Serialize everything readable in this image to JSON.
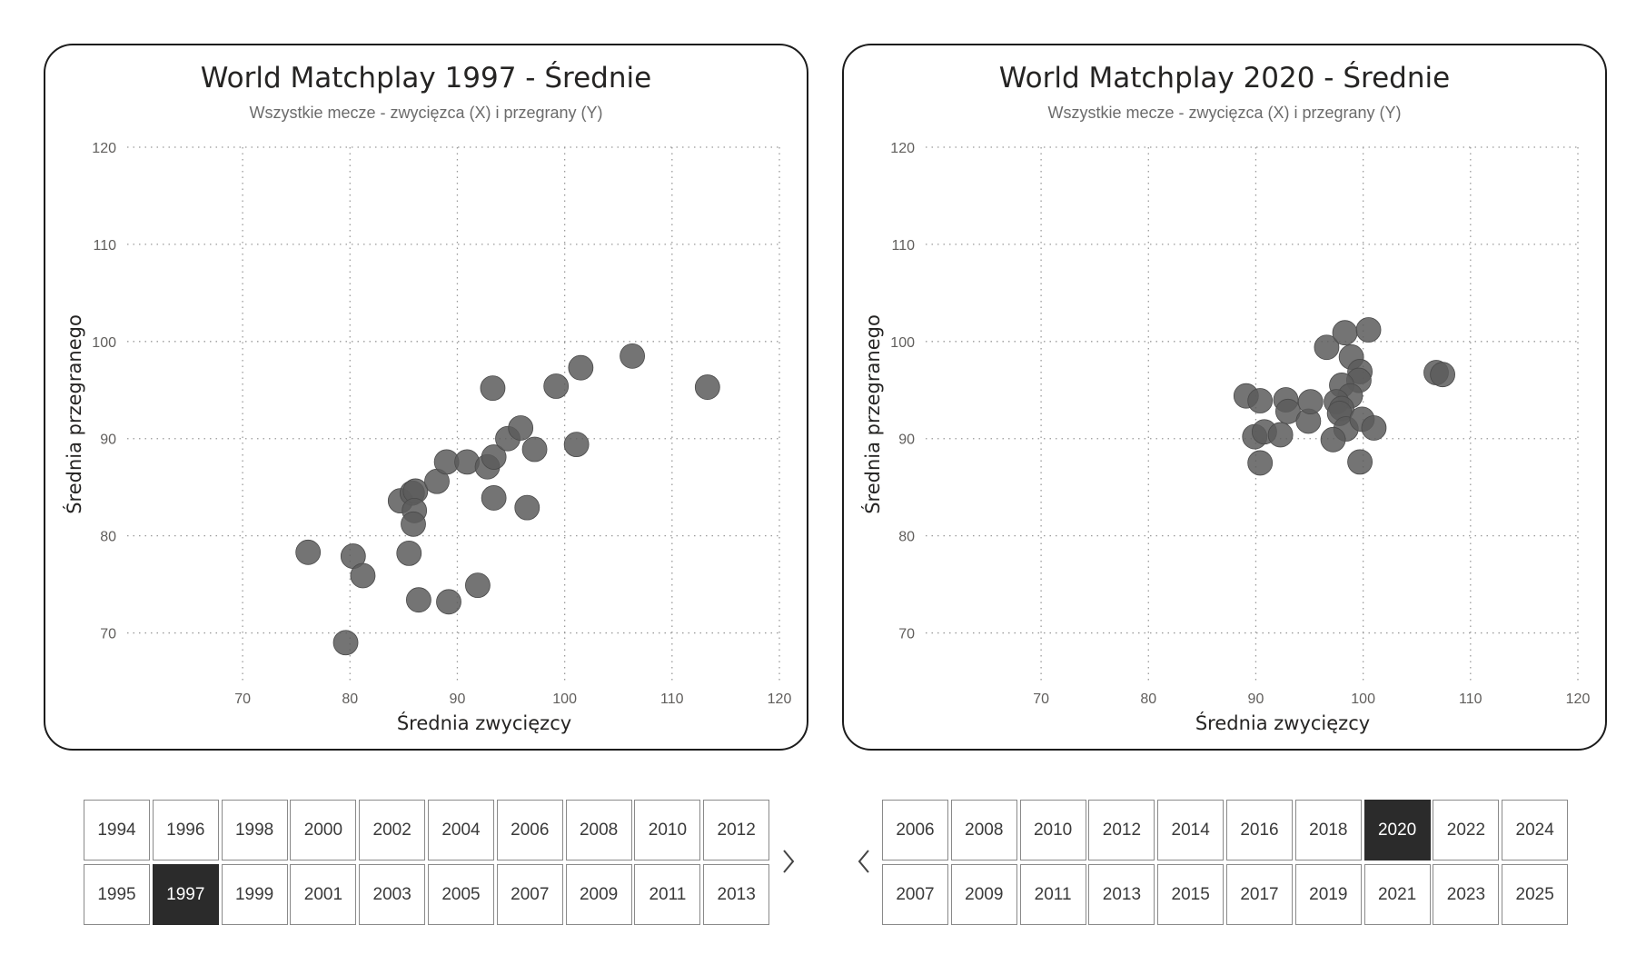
{
  "colors": {
    "point": "#5c5c5c",
    "selected": "#2b2b2b",
    "border": "#1c1c1c"
  },
  "charts": [
    {
      "title": "World Matchplay 1997 - Średnie",
      "subtitle": "Wszystkie mecze - zwycięzca (X) i przegrany (Y)",
      "xlabel": "Średnia zwycięzcy",
      "ylabel": "Średnia przegranego"
    },
    {
      "title": "World Matchplay 2020 - Średnie",
      "subtitle": "Wszystkie mecze - zwycięzca (X) i przegrany (Y)",
      "xlabel": "Średnia zwycięzcy",
      "ylabel": "Średnia przegranego"
    }
  ],
  "chart_data": [
    {
      "type": "scatter",
      "title": "World Matchplay 1997 - Średnie",
      "subtitle": "Wszystkie mecze - zwycięzca (X) i przegrany (Y)",
      "xlabel": "Średnia zwycięzcy",
      "ylabel": "Średnia przegranego",
      "xlim": [
        65,
        120
      ],
      "ylim": [
        65,
        120
      ],
      "xticks": [
        70,
        80,
        90,
        100,
        110,
        120
      ],
      "yticks": [
        70,
        80,
        90,
        100,
        110,
        120
      ],
      "grid": true,
      "points": [
        [
          76.1,
          78.3
        ],
        [
          80.3,
          77.9
        ],
        [
          81.2,
          75.9
        ],
        [
          79.6,
          69.0
        ],
        [
          85.5,
          78.2
        ],
        [
          86.4,
          73.4
        ],
        [
          89.2,
          73.2
        ],
        [
          91.9,
          74.9
        ],
        [
          84.7,
          83.6
        ],
        [
          85.8,
          84.4
        ],
        [
          86.1,
          84.6
        ],
        [
          86.0,
          82.6
        ],
        [
          85.9,
          81.2
        ],
        [
          88.1,
          85.6
        ],
        [
          89.0,
          87.6
        ],
        [
          90.9,
          87.6
        ],
        [
          92.8,
          87.1
        ],
        [
          93.4,
          88.1
        ],
        [
          93.4,
          83.9
        ],
        [
          94.7,
          90.0
        ],
        [
          95.9,
          91.1
        ],
        [
          97.2,
          88.9
        ],
        [
          96.5,
          82.9
        ],
        [
          93.3,
          95.2
        ],
        [
          99.2,
          95.4
        ],
        [
          101.1,
          89.4
        ],
        [
          101.5,
          97.3
        ],
        [
          106.3,
          98.5
        ],
        [
          113.3,
          95.3
        ]
      ]
    },
    {
      "type": "scatter",
      "title": "World Matchplay 2020 - Średnie",
      "subtitle": "Wszystkie mecze - zwycięzca (X) i przegrany (Y)",
      "xlabel": "Średnia zwycięzcy",
      "ylabel": "Średnia przegranego",
      "xlim": [
        65,
        120
      ],
      "ylim": [
        65,
        120
      ],
      "xticks": [
        70,
        80,
        90,
        100,
        110,
        120
      ],
      "yticks": [
        70,
        80,
        90,
        100,
        110,
        120
      ],
      "grid": true,
      "points": [
        [
          89.1,
          94.4
        ],
        [
          90.4,
          93.9
        ],
        [
          89.9,
          90.2
        ],
        [
          90.8,
          90.7
        ],
        [
          90.4,
          87.5
        ],
        [
          92.3,
          90.4
        ],
        [
          92.8,
          94.0
        ],
        [
          93.0,
          92.8
        ],
        [
          94.9,
          91.8
        ],
        [
          95.1,
          93.8
        ],
        [
          96.6,
          99.4
        ],
        [
          98.3,
          100.9
        ],
        [
          100.5,
          101.2
        ],
        [
          98.9,
          98.4
        ],
        [
          99.7,
          96.9
        ],
        [
          99.6,
          96.0
        ],
        [
          98.0,
          95.5
        ],
        [
          98.8,
          94.4
        ],
        [
          97.5,
          93.8
        ],
        [
          98.0,
          93.1
        ],
        [
          97.8,
          92.6
        ],
        [
          98.4,
          91.0
        ],
        [
          97.2,
          89.9
        ],
        [
          99.9,
          92.0
        ],
        [
          101.0,
          91.1
        ],
        [
          99.7,
          87.6
        ],
        [
          106.8,
          96.8
        ],
        [
          107.4,
          96.6
        ]
      ]
    }
  ],
  "slicers": [
    {
      "rows": [
        [
          "1994",
          "1996",
          "1998",
          "2000",
          "2002",
          "2004",
          "2006",
          "2008",
          "2010",
          "2012"
        ],
        [
          "1995",
          "1997",
          "1999",
          "2001",
          "2003",
          "2005",
          "2007",
          "2009",
          "2011",
          "2013"
        ]
      ],
      "selected": "1997",
      "next_icon": "chevron-right-icon"
    },
    {
      "rows": [
        [
          "2006",
          "2008",
          "2010",
          "2012",
          "2014",
          "2016",
          "2018",
          "2020",
          "2022",
          "2024"
        ],
        [
          "2007",
          "2009",
          "2011",
          "2013",
          "2015",
          "2017",
          "2019",
          "2021",
          "2023",
          "2025"
        ]
      ],
      "selected": "2020",
      "prev_icon": "chevron-left-icon"
    }
  ]
}
